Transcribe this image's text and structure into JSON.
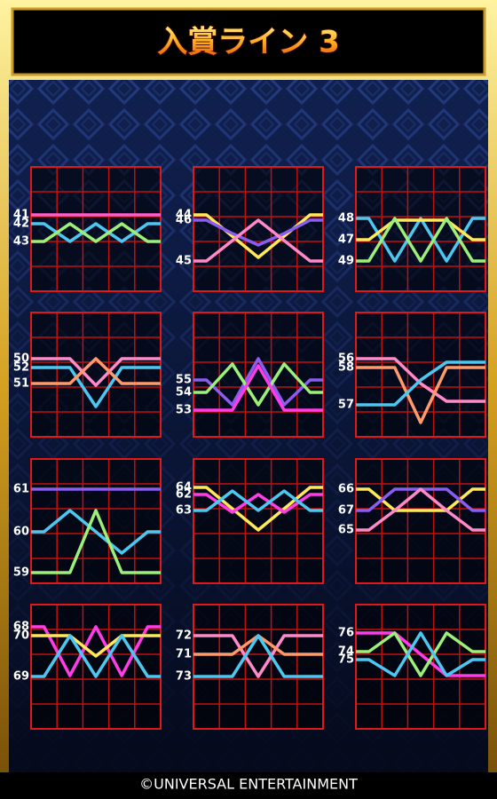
{
  "header": {
    "title": "入賞ライン 3"
  },
  "panels": [
    {
      "lines": [
        {
          "label": "41",
          "color": "#ff5cc8"
        },
        {
          "label": "42",
          "color": "#4cc8f0"
        },
        {
          "label": "43",
          "color": "#9cf07a"
        }
      ]
    },
    {
      "lines": [
        {
          "label": "44",
          "color": "#ffe85a"
        },
        {
          "label": "46",
          "color": "#8a5cf0"
        },
        {
          "label": "45",
          "color": "#ff8ac8"
        }
      ]
    },
    {
      "lines": [
        {
          "label": "48",
          "color": "#4cc8f0"
        },
        {
          "label": "47",
          "color": "#ffe85a"
        },
        {
          "label": "49",
          "color": "#9cf07a"
        }
      ]
    },
    {
      "lines": [
        {
          "label": "50",
          "color": "#ff8ac8"
        },
        {
          "label": "52",
          "color": "#4cc8f0"
        },
        {
          "label": "51",
          "color": "#ff9a6a"
        }
      ]
    },
    {
      "lines": [
        {
          "label": "55",
          "color": "#8a5cf0"
        },
        {
          "label": "54",
          "color": "#9cf07a"
        },
        {
          "label": "53",
          "color": "#ff3ce6"
        }
      ]
    },
    {
      "lines": [
        {
          "label": "56",
          "color": "#ff8ac8"
        },
        {
          "label": "58",
          "color": "#ff9a6a"
        },
        {
          "label": "57",
          "color": "#4cc8f0"
        }
      ]
    },
    {
      "lines": [
        {
          "label": "61",
          "color": "#8a5cf0"
        },
        {
          "label": "60",
          "color": "#4cc8f0"
        },
        {
          "label": "59",
          "color": "#9cf07a"
        }
      ]
    },
    {
      "lines": [
        {
          "label": "64",
          "color": "#ffe85a"
        },
        {
          "label": "62",
          "color": "#ff3ce6"
        },
        {
          "label": "63",
          "color": "#4cc8f0"
        }
      ]
    },
    {
      "lines": [
        {
          "label": "66",
          "color": "#ffe85a"
        },
        {
          "label": "67",
          "color": "#8a5cf0"
        },
        {
          "label": "65",
          "color": "#ff8ac8"
        }
      ]
    },
    {
      "lines": [
        {
          "label": "68",
          "color": "#ff3ce6"
        },
        {
          "label": "70",
          "color": "#ffe85a"
        },
        {
          "label": "69",
          "color": "#4cc8f0"
        }
      ]
    },
    {
      "lines": [
        {
          "label": "72",
          "color": "#ff8ac8"
        },
        {
          "label": "71",
          "color": "#ff9a6a"
        },
        {
          "label": "73",
          "color": "#4cc8f0"
        }
      ]
    },
    {
      "lines": [
        {
          "label": "76",
          "color": "#ff3ce6"
        },
        {
          "label": "74",
          "color": "#9cf07a"
        },
        {
          "label": "75",
          "color": "#4cc8f0"
        }
      ]
    }
  ],
  "footer": {
    "copyright": "©UNIVERSAL ENTERTAINMENT"
  }
}
